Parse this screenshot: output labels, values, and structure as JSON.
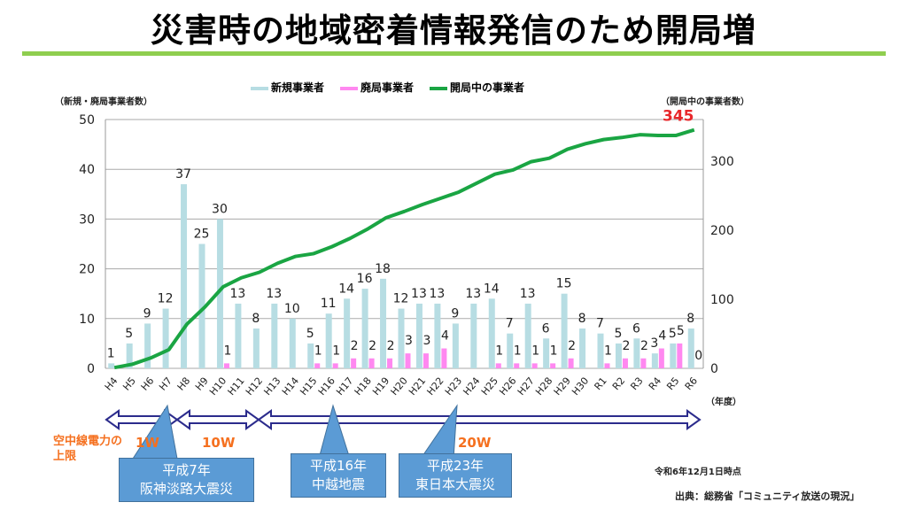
{
  "title": "災害時の地域密着情報発信のため開局増",
  "chart_data": {
    "type": "bar+line",
    "left_axis_label": "（新規・廃局事業者数）",
    "right_axis_label": "（開局中の事業者数）",
    "x_axis_label": "（年度）",
    "ylim_left": [
      0,
      50
    ],
    "yticks_left": [
      0,
      10,
      20,
      30,
      40,
      50
    ],
    "ylim_right": [
      0,
      360
    ],
    "yticks_right": [
      0,
      100,
      200,
      300
    ],
    "categories": [
      "H4",
      "H5",
      "H6",
      "H7",
      "H8",
      "H9",
      "H10",
      "H11",
      "H12",
      "H13",
      "H14",
      "H15",
      "H16",
      "H17",
      "H18",
      "H19",
      "H20",
      "H21",
      "H22",
      "H23",
      "H24",
      "H25",
      "H26",
      "H27",
      "H28",
      "H29",
      "H30",
      "R1",
      "R2",
      "R3",
      "R4",
      "R5",
      "R6"
    ],
    "series": [
      {
        "name": "新規事業者",
        "type": "bar",
        "axis": "left",
        "color": "#b7dde3",
        "values": [
          1,
          5,
          9,
          12,
          37,
          25,
          30,
          13,
          8,
          13,
          10,
          5,
          11,
          14,
          16,
          18,
          12,
          13,
          13,
          9,
          13,
          14,
          7,
          13,
          6,
          15,
          8,
          7,
          5,
          6,
          3,
          5,
          8
        ]
      },
      {
        "name": "廃局事業者",
        "type": "bar",
        "axis": "left",
        "color": "#ff88f0",
        "values": [
          null,
          null,
          null,
          null,
          null,
          null,
          1,
          null,
          null,
          null,
          null,
          1,
          1,
          2,
          2,
          2,
          3,
          3,
          4,
          null,
          null,
          1,
          1,
          1,
          1,
          2,
          null,
          1,
          2,
          2,
          4,
          5,
          0
        ]
      },
      {
        "name": "開局中の事業者",
        "type": "line",
        "axis": "right",
        "color": "#1aa543",
        "values": [
          1,
          6,
          15,
          27,
          64,
          89,
          118,
          131,
          139,
          152,
          162,
          166,
          176,
          188,
          202,
          218,
          227,
          237,
          246,
          255,
          268,
          281,
          287,
          299,
          304,
          317,
          325,
          331,
          334,
          338,
          337,
          337,
          345
        ]
      }
    ],
    "final_label": "345",
    "power_limit_label": "空中線電力の上限",
    "power_periods": [
      "1W",
      "10W",
      "20W"
    ],
    "events": [
      {
        "line1": "平成7年",
        "line2": "阪神淡路大震災",
        "category": "H7"
      },
      {
        "line1": "平成16年",
        "line2": "中越地震",
        "category": "H16"
      },
      {
        "line1": "平成23年",
        "line2": "東日本大震災",
        "category": "H23"
      }
    ],
    "as_of": "令和6年12月1日時点",
    "source": "出典：総務省「コミュニティ放送の現況」"
  }
}
